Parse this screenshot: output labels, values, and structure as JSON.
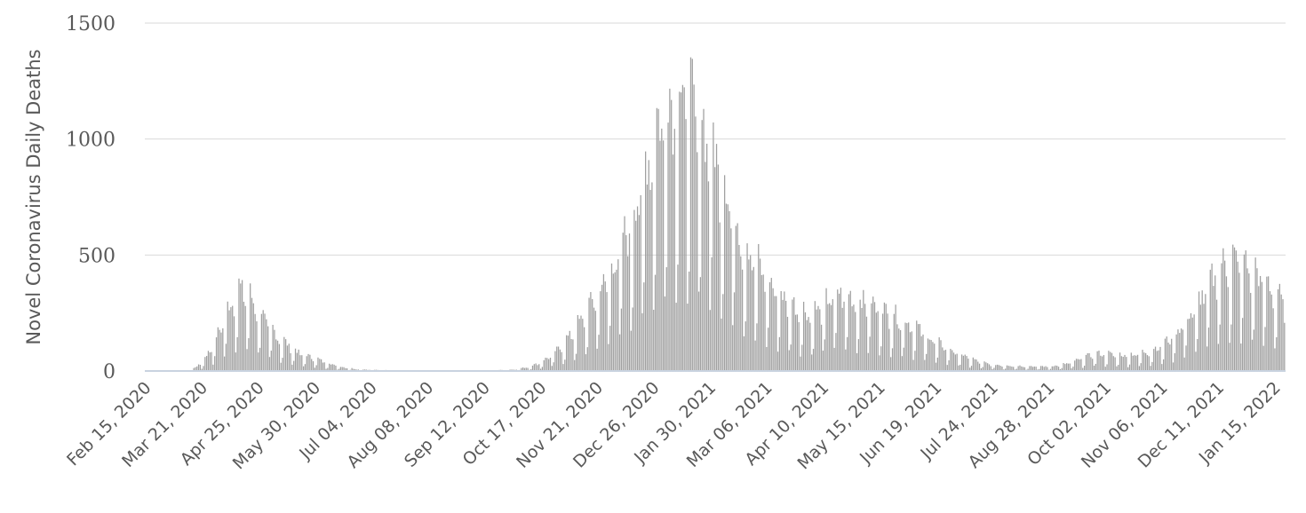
{
  "chart_data": {
    "type": "bar",
    "ylabel": "Novel Coronavirus Daily Deaths",
    "ylim": [
      0,
      1500
    ],
    "yticks": [
      0,
      500,
      1000,
      1500
    ],
    "grid": true,
    "x_start": "2020-02-15",
    "x_end": "2022-01-21",
    "xtick_labels": [
      "Feb 15, 2020",
      "Mar 21, 2020",
      "Apr 25, 2020",
      "May 30, 2020",
      "Jul 04, 2020",
      "Aug 08, 2020",
      "Sep 12, 2020",
      "Oct 17, 2020",
      "Nov 21, 2020",
      "Dec 26, 2020",
      "Jan 30, 2021",
      "Mar 06, 2021",
      "Apr 10, 2021",
      "May 15, 2021",
      "Jun 19, 2021",
      "Jul 24, 2021",
      "Aug 28, 2021",
      "Oct 02, 2021",
      "Nov 06, 2021",
      "Dec 11, 2021",
      "Jan 15, 2022"
    ],
    "series_anchors": [
      [
        "2020-02-15",
        0
      ],
      [
        "2020-03-11",
        0
      ],
      [
        "2020-03-15",
        5
      ],
      [
        "2020-03-21",
        30
      ],
      [
        "2020-03-28",
        90
      ],
      [
        "2020-04-03",
        170
      ],
      [
        "2020-04-08",
        240
      ],
      [
        "2020-04-13",
        280
      ],
      [
        "2020-04-18",
        270
      ],
      [
        "2020-04-23",
        230
      ],
      [
        "2020-04-30",
        170
      ],
      [
        "2020-05-07",
        120
      ],
      [
        "2020-05-14",
        90
      ],
      [
        "2020-05-21",
        60
      ],
      [
        "2020-05-30",
        45
      ],
      [
        "2020-06-06",
        30
      ],
      [
        "2020-06-15",
        15
      ],
      [
        "2020-06-25",
        6
      ],
      [
        "2020-07-10",
        3
      ],
      [
        "2020-08-10",
        2
      ],
      [
        "2020-09-15",
        2
      ],
      [
        "2020-10-01",
        5
      ],
      [
        "2020-10-10",
        15
      ],
      [
        "2020-10-17",
        30
      ],
      [
        "2020-10-25",
        60
      ],
      [
        "2020-11-01",
        100
      ],
      [
        "2020-11-08",
        150
      ],
      [
        "2020-11-15",
        210
      ],
      [
        "2020-11-21",
        270
      ],
      [
        "2020-11-28",
        330
      ],
      [
        "2020-12-05",
        420
      ],
      [
        "2020-12-12",
        520
      ],
      [
        "2020-12-19",
        650
      ],
      [
        "2020-12-26",
        800
      ],
      [
        "2021-01-02",
        920
      ],
      [
        "2021-01-08",
        960
      ],
      [
        "2021-01-15",
        930
      ],
      [
        "2021-01-22",
        880
      ],
      [
        "2021-01-30",
        800
      ],
      [
        "2021-02-06",
        700
      ],
      [
        "2021-02-13",
        560
      ],
      [
        "2021-02-20",
        450
      ],
      [
        "2021-02-27",
        380
      ],
      [
        "2021-03-06",
        320
      ],
      [
        "2021-03-13",
        270
      ],
      [
        "2021-03-20",
        240
      ],
      [
        "2021-03-27",
        210
      ],
      [
        "2021-04-03",
        200
      ],
      [
        "2021-04-10",
        220
      ],
      [
        "2021-04-17",
        270
      ],
      [
        "2021-04-24",
        260
      ],
      [
        "2021-05-01",
        250
      ],
      [
        "2021-05-08",
        240
      ],
      [
        "2021-05-15",
        220
      ],
      [
        "2021-05-22",
        200
      ],
      [
        "2021-05-29",
        180
      ],
      [
        "2021-06-05",
        160
      ],
      [
        "2021-06-12",
        130
      ],
      [
        "2021-06-19",
        100
      ],
      [
        "2021-06-26",
        80
      ],
      [
        "2021-07-03",
        60
      ],
      [
        "2021-07-10",
        45
      ],
      [
        "2021-07-17",
        30
      ],
      [
        "2021-07-24",
        22
      ],
      [
        "2021-08-07",
        18
      ],
      [
        "2021-08-21",
        16
      ],
      [
        "2021-08-28",
        16
      ],
      [
        "2021-09-04",
        20
      ],
      [
        "2021-09-11",
        30
      ],
      [
        "2021-09-18",
        45
      ],
      [
        "2021-09-25",
        60
      ],
      [
        "2021-10-02",
        60
      ],
      [
        "2021-10-09",
        55
      ],
      [
        "2021-10-16",
        55
      ],
      [
        "2021-10-23",
        60
      ],
      [
        "2021-10-30",
        70
      ],
      [
        "2021-11-06",
        90
      ],
      [
        "2021-11-13",
        120
      ],
      [
        "2021-11-20",
        170
      ],
      [
        "2021-11-27",
        220
      ],
      [
        "2021-12-04",
        290
      ],
      [
        "2021-12-11",
        350
      ],
      [
        "2021-12-18",
        390
      ],
      [
        "2021-12-25",
        380
      ],
      [
        "2022-01-01",
        350
      ],
      [
        "2022-01-08",
        320
      ],
      [
        "2022-01-15",
        280
      ],
      [
        "2022-01-21",
        230
      ]
    ]
  }
}
